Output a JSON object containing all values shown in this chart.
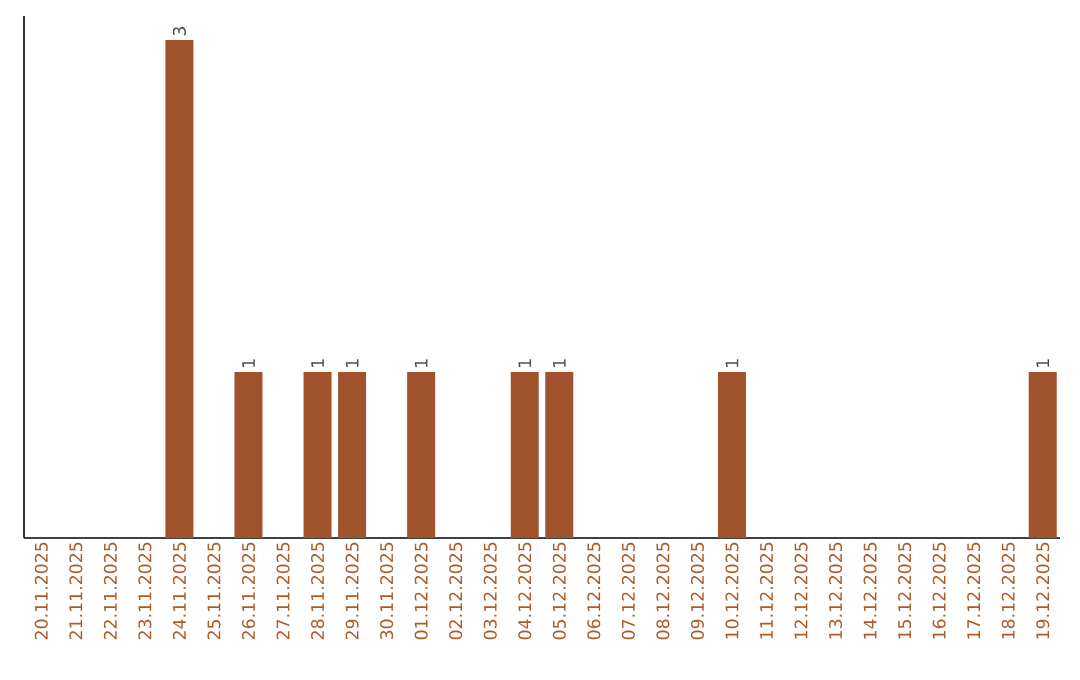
{
  "chart_data": {
    "type": "bar",
    "categories": [
      "20.11.2025",
      "21.11.2025",
      "22.11.2025",
      "23.11.2025",
      "24.11.2025",
      "25.11.2025",
      "26.11.2025",
      "27.11.2025",
      "28.11.2025",
      "29.11.2025",
      "30.11.2025",
      "01.12.2025",
      "02.12.2025",
      "03.12.2025",
      "04.12.2025",
      "05.12.2025",
      "06.12.2025",
      "07.12.2025",
      "08.12.2025",
      "09.12.2025",
      "10.12.2025",
      "11.12.2025",
      "12.12.2025",
      "13.12.2025",
      "14.12.2025",
      "15.12.2025",
      "16.12.2025",
      "17.12.2025",
      "18.12.2025",
      "19.12.2025"
    ],
    "values": [
      0,
      0,
      0,
      0,
      3,
      0,
      1,
      0,
      1,
      1,
      0,
      1,
      0,
      0,
      1,
      1,
      0,
      0,
      0,
      0,
      1,
      0,
      0,
      0,
      0,
      0,
      0,
      0,
      0,
      1
    ],
    "value_labels": [
      null,
      null,
      null,
      null,
      "3",
      null,
      "1",
      null,
      "1",
      "1",
      null,
      "1",
      null,
      null,
      "1",
      "1",
      null,
      null,
      null,
      null,
      "1",
      null,
      null,
      null,
      null,
      null,
      null,
      null,
      null,
      "1"
    ],
    "color": "#a0522d",
    "tick_labels": "x"
  }
}
